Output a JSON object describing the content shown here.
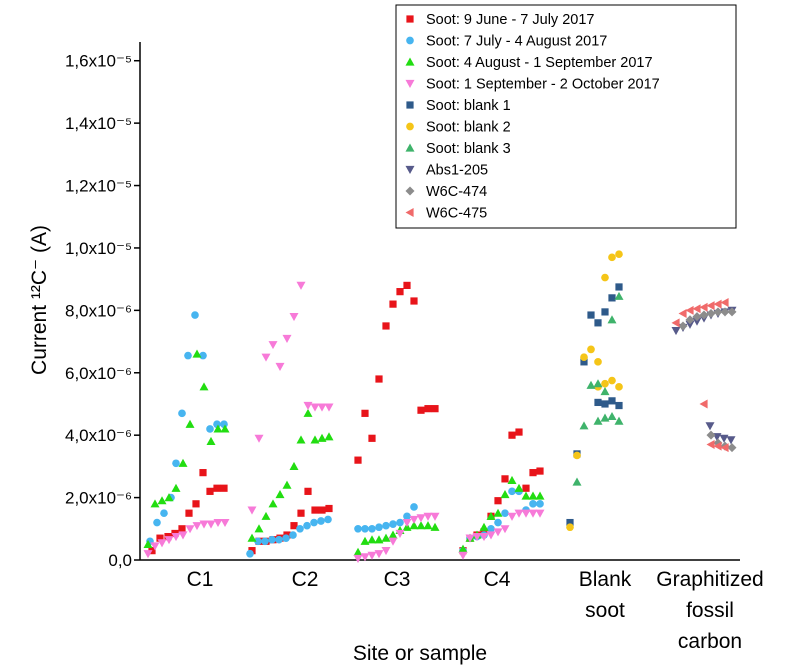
{
  "chart_data": {
    "type": "scatter",
    "x_label": "Site or sample",
    "y_label": "Current ¹²C⁻ (A)",
    "xlim": [
      0,
      600
    ],
    "ylim": [
      0,
      1.66e-05
    ],
    "xticks": [
      {
        "value": 60,
        "label": "C1"
      },
      {
        "value": 165,
        "label": "C2"
      },
      {
        "value": 257,
        "label": "C3"
      },
      {
        "value": 357,
        "label": "C4"
      },
      {
        "value": 465,
        "label": "Blank soot"
      },
      {
        "value": 570,
        "label": "Graphitized fossil carbon"
      }
    ],
    "yticks": [
      {
        "value": 0,
        "label": "0,0"
      },
      {
        "value": 2e-06,
        "label": "2,0x10⁻⁶"
      },
      {
        "value": 4e-06,
        "label": "4,0x10⁻⁶"
      },
      {
        "value": 6e-06,
        "label": "6,0x10⁻⁶"
      },
      {
        "value": 8e-06,
        "label": "8,0x10⁻⁶"
      },
      {
        "value": 1e-05,
        "label": "1,0x10⁻⁵"
      },
      {
        "value": 1.2e-05,
        "label": "1,2x10⁻⁵"
      },
      {
        "value": 1.4e-05,
        "label": "1,4x10⁻⁵"
      },
      {
        "value": 1.6e-05,
        "label": "1,6x10⁻⁵"
      }
    ],
    "legend": "upper right",
    "series": [
      {
        "name": "Soot: 9 June - 7 July  2017",
        "color": "#e8141a",
        "marker": "square",
        "x": [
          12,
          20,
          28,
          35,
          42,
          49,
          56,
          63,
          70,
          77,
          84,
          112,
          119,
          126,
          133,
          140,
          147,
          154,
          161,
          168,
          175,
          182,
          189,
          218,
          225,
          232,
          239,
          246,
          253,
          260,
          267,
          274,
          281,
          288,
          295,
          323,
          330,
          337,
          344,
          351,
          358,
          365,
          372,
          379,
          386,
          393,
          400
        ],
        "values": [
          3e-07,
          7e-07,
          7.5e-07,
          8.5e-07,
          1e-06,
          1.5e-06,
          1.8e-06,
          2.8e-06,
          2.2e-06,
          2.3e-06,
          2.3e-06,
          3e-07,
          6e-07,
          6e-07,
          6.5e-07,
          7e-07,
          8e-07,
          1.1e-06,
          1.5e-06,
          2.2e-06,
          1.6e-06,
          1.6e-06,
          1.65e-06,
          3.2e-06,
          4.7e-06,
          3.9e-06,
          5.8e-06,
          7.5e-06,
          8.2e-06,
          8.6e-06,
          8.8e-06,
          8.3e-06,
          4.8e-06,
          4.85e-06,
          4.85e-06,
          3e-07,
          7e-07,
          8e-07,
          9e-07,
          1.4e-06,
          1.9e-06,
          2.6e-06,
          4e-06,
          4.1e-06,
          2.3e-06,
          2.8e-06,
          2.85e-06
        ]
      },
      {
        "name": "Soot: 7 July - 4 August 2017",
        "color": "#47b5f0",
        "marker": "circle",
        "x": [
          10,
          17,
          24,
          31,
          36,
          42,
          48,
          55,
          63,
          70,
          77,
          84,
          110,
          118,
          125,
          132,
          139,
          146,
          153,
          160,
          167,
          174,
          181,
          188,
          218,
          225,
          232,
          239,
          246,
          253,
          260,
          267,
          274,
          323,
          330,
          337,
          344,
          351,
          358,
          365,
          372,
          379,
          386,
          393,
          400
        ],
        "values": [
          6e-07,
          1.2e-06,
          1.5e-06,
          2e-06,
          3.1e-06,
          4.7e-06,
          6.55e-06,
          7.85e-06,
          6.55e-06,
          4.2e-06,
          4.35e-06,
          4.35e-06,
          2e-07,
          6e-07,
          6e-07,
          6.5e-07,
          6.5e-07,
          7e-07,
          8e-07,
          1e-06,
          1.1e-06,
          1.2e-06,
          1.25e-06,
          1.3e-06,
          1e-06,
          1e-06,
          1e-06,
          1.05e-06,
          1.1e-06,
          1.15e-06,
          1.2e-06,
          1.4e-06,
          1.7e-06,
          3e-07,
          7e-07,
          7.5e-07,
          8e-07,
          1e-06,
          1.2e-06,
          1.5e-06,
          2.2e-06,
          2.2e-06,
          1.6e-06,
          1.8e-06,
          1.8e-06
        ]
      },
      {
        "name": "Soot: 4 August - 1 September 2017",
        "color": "#22dd11",
        "marker": "triangle-up",
        "x": [
          8,
          15,
          22,
          29,
          36,
          43,
          50,
          57,
          64,
          71,
          78,
          85,
          112,
          119,
          126,
          133,
          140,
          147,
          154,
          161,
          168,
          175,
          182,
          189,
          218,
          225,
          232,
          239,
          246,
          253,
          260,
          267,
          274,
          281,
          288,
          295,
          323,
          330,
          337,
          344,
          351,
          358,
          365,
          372,
          379,
          386,
          393,
          400
        ],
        "values": [
          5e-07,
          1.8e-06,
          1.9e-06,
          2e-06,
          2.3e-06,
          3.1e-06,
          4.35e-06,
          6.6e-06,
          5.55e-06,
          3.8e-06,
          4.2e-06,
          4.2e-06,
          7e-07,
          1e-06,
          1.4e-06,
          1.8e-06,
          2.1e-06,
          2.4e-06,
          3e-06,
          3.85e-06,
          4.7e-06,
          3.85e-06,
          3.9e-06,
          3.95e-06,
          2.5e-07,
          6e-07,
          6.5e-07,
          6.5e-07,
          7e-07,
          8e-07,
          9.5e-07,
          1.05e-06,
          1.1e-06,
          1.1e-06,
          1.1e-06,
          1.05e-06,
          3.5e-07,
          7e-07,
          8e-07,
          1.05e-06,
          1.4e-06,
          1.5e-06,
          2.1e-06,
          2.55e-06,
          2.3e-06,
          2.05e-06,
          2.05e-06,
          2.05e-06
        ]
      },
      {
        "name": "Soot: 1 September - 2 October  2017",
        "color": "#f77ad8",
        "marker": "triangle-down",
        "x": [
          8,
          15,
          22,
          29,
          36,
          43,
          50,
          57,
          64,
          71,
          78,
          85,
          112,
          119,
          126,
          133,
          140,
          147,
          154,
          161,
          168,
          175,
          182,
          189,
          218,
          225,
          232,
          239,
          246,
          253,
          260,
          267,
          274,
          281,
          288,
          295,
          323,
          330,
          337,
          344,
          351,
          358,
          365,
          372,
          379,
          386,
          393,
          400
        ],
        "values": [
          2e-07,
          4.5e-07,
          5.5e-07,
          6.5e-07,
          7.5e-07,
          8e-07,
          1e-06,
          1.1e-06,
          1.15e-06,
          1.15e-06,
          1.2e-06,
          1.2e-06,
          1.6e-06,
          3.9e-06,
          6.5e-06,
          6.9e-06,
          6.2e-06,
          7.1e-06,
          7.8e-06,
          8.8e-06,
          4.95e-06,
          4.9e-06,
          4.9e-06,
          4.9e-06,
          5e-08,
          1e-07,
          1.5e-07,
          2e-07,
          3e-07,
          6e-07,
          8.5e-07,
          1.2e-06,
          1.3e-06,
          1.35e-06,
          1.4e-06,
          1.4e-06,
          1.5e-07,
          7e-07,
          7.5e-07,
          7.5e-07,
          8e-07,
          9e-07,
          1e-06,
          1.4e-06,
          1.5e-06,
          1.5e-06,
          1.5e-06,
          1.5e-06
        ]
      },
      {
        "name": "Soot: blank 1",
        "color": "#2e5a8a",
        "marker": "square",
        "x": [
          430,
          437,
          444,
          451,
          458,
          465,
          472,
          479,
          458,
          465,
          472,
          479
        ],
        "values": [
          1.2e-06,
          3.4e-06,
          6.35e-06,
          7.85e-06,
          7.6e-06,
          7.95e-06,
          8.4e-06,
          8.75e-06,
          5.05e-06,
          5e-06,
          5.1e-06,
          4.95e-06
        ]
      },
      {
        "name": "Soot: blank 2",
        "color": "#f5c518",
        "marker": "circle",
        "x": [
          430,
          437,
          444,
          451,
          458,
          465,
          472,
          479,
          458,
          465,
          472,
          479
        ],
        "values": [
          1.05e-06,
          3.35e-06,
          6.5e-06,
          6.75e-06,
          6.35e-06,
          9.05e-06,
          9.7e-06,
          9.8e-06,
          5.55e-06,
          5.65e-06,
          5.75e-06,
          5.55e-06
        ]
      },
      {
        "name": "Soot: blank 3",
        "color": "#3fb36b",
        "marker": "triangle-up",
        "x": [
          437,
          444,
          451,
          458,
          465,
          472,
          479,
          458,
          465,
          472,
          479
        ],
        "values": [
          2.5e-06,
          4.3e-06,
          5.6e-06,
          5.65e-06,
          5.4e-06,
          7.7e-06,
          8.45e-06,
          4.45e-06,
          4.55e-06,
          4.6e-06,
          4.45e-06
        ]
      },
      {
        "name": "Abs1-205",
        "color": "#575a8a",
        "marker": "triangle-down",
        "x": [
          536,
          543,
          550,
          557,
          564,
          571,
          578,
          585,
          592,
          570,
          577,
          584,
          591
        ],
        "values": [
          7.35e-06,
          7.45e-06,
          7.55e-06,
          7.65e-06,
          7.75e-06,
          7.85e-06,
          7.9e-06,
          7.95e-06,
          8e-06,
          4.3e-06,
          3.95e-06,
          3.9e-06,
          3.85e-06
        ]
      },
      {
        "name": "W6C-474",
        "color": "#8c8c8c",
        "marker": "diamond",
        "x": [
          543,
          550,
          557,
          564,
          571,
          578,
          585,
          592,
          571,
          578,
          585,
          592
        ],
        "values": [
          7.5e-06,
          7.7e-06,
          7.8e-06,
          7.85e-06,
          7.9e-06,
          7.95e-06,
          7.95e-06,
          7.95e-06,
          4e-06,
          3.75e-06,
          3.65e-06,
          3.6e-06
        ]
      },
      {
        "name": "W6C-475",
        "color": "#f06a6a",
        "marker": "triangle-left",
        "x": [
          536,
          543,
          550,
          557,
          564,
          571,
          578,
          585,
          564,
          571,
          578,
          585
        ],
        "values": [
          7.6e-06,
          7.9e-06,
          8e-06,
          8.05e-06,
          8.1e-06,
          8.15e-06,
          8.2e-06,
          8.25e-06,
          5e-06,
          3.7e-06,
          3.65e-06,
          3.6e-06
        ]
      }
    ]
  }
}
